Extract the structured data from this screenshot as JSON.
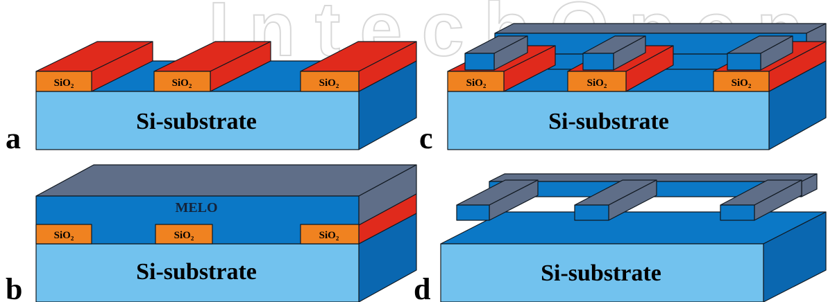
{
  "watermark": "IntechOpen",
  "colors": {
    "substrate_front": "#72c2ee",
    "substrate_top": "#0b78c6",
    "substrate_side": "#0a67b0",
    "melo_front": "#0b78c6",
    "melo_top": "#5f6e88",
    "melo_side": "#5f6e88",
    "oxide_front": "#f08220",
    "oxide_top_side": "#e02a1c"
  },
  "panels": [
    {
      "letter": "a",
      "substrate_label": "Si-substrate",
      "oxide_labels": [
        "SiO₂",
        "SiO₂",
        "SiO₂"
      ]
    },
    {
      "letter": "b",
      "substrate_label": "Si-substrate",
      "melo_label": "MELO",
      "oxide_labels": [
        "SiO₂",
        "SiO₂",
        "SiO₂"
      ]
    },
    {
      "letter": "c",
      "substrate_label": "Si-substrate",
      "oxide_labels": [
        "SiO₂",
        "SiO₂",
        "SiO₂"
      ]
    },
    {
      "letter": "d",
      "substrate_label": "Si-substrate"
    }
  ]
}
